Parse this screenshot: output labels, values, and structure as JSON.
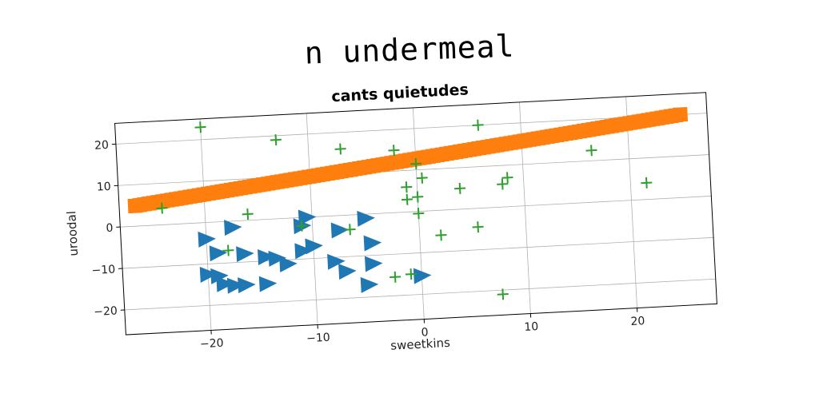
{
  "title": "n undermeal",
  "chart_data": {
    "type": "scatter",
    "title": "cants quietudes",
    "xlabel": "sweetkins",
    "ylabel": "uroodal",
    "xlim": [
      -28,
      27.5
    ],
    "ylim": [
      -26,
      25
    ],
    "xticks": [
      -20,
      -10,
      0,
      10,
      20
    ],
    "yticks": [
      -20,
      -10,
      0,
      10,
      20
    ],
    "xtick_labels": [
      "−20",
      "−10",
      "0",
      "10",
      "20"
    ],
    "ytick_labels": [
      "−20",
      "−10",
      "0",
      "10",
      "20"
    ],
    "grid": true,
    "series": [
      {
        "marker": "triangle-right",
        "color": "#1f77b4",
        "points": [
          [
            -20,
            -4
          ],
          [
            -17.5,
            -1.5
          ],
          [
            -19,
            -7.5
          ],
          [
            -16.5,
            -8
          ],
          [
            -14.5,
            -9
          ],
          [
            -13.5,
            -9.5
          ],
          [
            -12.5,
            -11
          ],
          [
            -11,
            -8
          ],
          [
            -10,
            -7
          ],
          [
            -8,
            -11
          ],
          [
            -10.5,
            0
          ],
          [
            -11,
            -2
          ],
          [
            -7.5,
            -3.5
          ],
          [
            -5,
            -1
          ],
          [
            -4.5,
            -7
          ],
          [
            -20,
            -12.5
          ],
          [
            -19,
            -13
          ],
          [
            -18.5,
            -15
          ],
          [
            -17.5,
            -15.5
          ],
          [
            -16.5,
            -15.5
          ],
          [
            -14.5,
            -15.5
          ],
          [
            -7,
            -13.5
          ],
          [
            -4.5,
            -12
          ],
          [
            -5,
            -17
          ],
          [
            0,
            -15.5
          ]
        ]
      },
      {
        "marker": "square",
        "color": "#ff7f0e",
        "x_start": -26.5,
        "x_end": 25,
        "y_start": 4.9,
        "y_end": 20.0,
        "count": 120
      },
      {
        "marker": "plus",
        "color": "#2ca02c",
        "points": [
          [
            -20,
            23
          ],
          [
            -13,
            19
          ],
          [
            -7,
            16
          ],
          [
            -2,
            15
          ],
          [
            6,
            20
          ],
          [
            0,
            11.5
          ],
          [
            0.5,
            8
          ],
          [
            -1,
            6
          ],
          [
            -1,
            3
          ],
          [
            0,
            3.5
          ],
          [
            0,
            -0.5
          ],
          [
            4,
            5
          ],
          [
            8,
            5.5
          ],
          [
            8.5,
            7
          ],
          [
            16.5,
            12.5
          ],
          [
            21.5,
            4
          ],
          [
            -24,
            4
          ],
          [
            -16,
            1.5
          ],
          [
            -11,
            -2
          ],
          [
            -6.5,
            -3.5
          ],
          [
            -18,
            -7
          ],
          [
            2,
            -6
          ],
          [
            5.5,
            -4.5
          ],
          [
            -2.5,
            -15.5
          ],
          [
            -1,
            -15
          ],
          [
            7.5,
            -21
          ]
        ]
      }
    ]
  }
}
